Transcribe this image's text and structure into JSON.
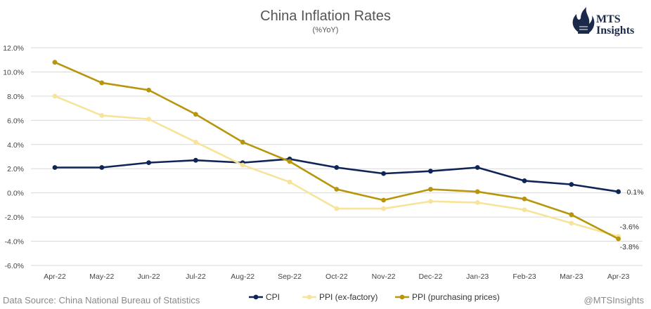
{
  "chart_data": {
    "type": "line",
    "title": "China Inflation Rates",
    "subtitle": "(%YoY)",
    "xlabel": "",
    "ylabel": "",
    "categories": [
      "Apr-22",
      "May-22",
      "Jun-22",
      "Jul-22",
      "Aug-22",
      "Sep-22",
      "Oct-22",
      "Nov-22",
      "Dec-22",
      "Jan-23",
      "Feb-23",
      "Mar-23",
      "Apr-23"
    ],
    "ylim": [
      -6,
      12
    ],
    "yticks": [
      "12.0%",
      "10.0%",
      "8.0%",
      "6.0%",
      "4.0%",
      "2.0%",
      "0.0%",
      "-2.0%",
      "-4.0%",
      "-6.0%"
    ],
    "grid": "horizontal",
    "legend": "bottom",
    "series": [
      {
        "name": "CPI",
        "color": "#0f2557",
        "values": [
          2.1,
          2.1,
          2.5,
          2.7,
          2.5,
          2.8,
          2.1,
          1.6,
          1.8,
          2.1,
          1.0,
          0.7,
          0.1
        ],
        "end_label": "0.1%"
      },
      {
        "name": "PPI (ex-factory)",
        "color": "#f7e49a",
        "values": [
          8.0,
          6.4,
          6.1,
          4.2,
          2.3,
          0.9,
          -1.3,
          -1.3,
          -0.7,
          -0.8,
          -1.4,
          -2.5,
          -3.6
        ],
        "end_label": "-3.6%"
      },
      {
        "name": "PPI (purchasing prices)",
        "color": "#b8960c",
        "values": [
          10.8,
          9.1,
          8.5,
          6.5,
          4.2,
          2.6,
          0.3,
          -0.6,
          0.3,
          0.1,
          -0.5,
          -1.8,
          -3.8
        ],
        "end_label": "-3.8%"
      }
    ]
  },
  "footer": {
    "source": "Data Source: China National Bureau of Statistics",
    "handle": "@MTSInsights"
  },
  "logo": {
    "line1": "MTS",
    "line2": "Insights"
  }
}
